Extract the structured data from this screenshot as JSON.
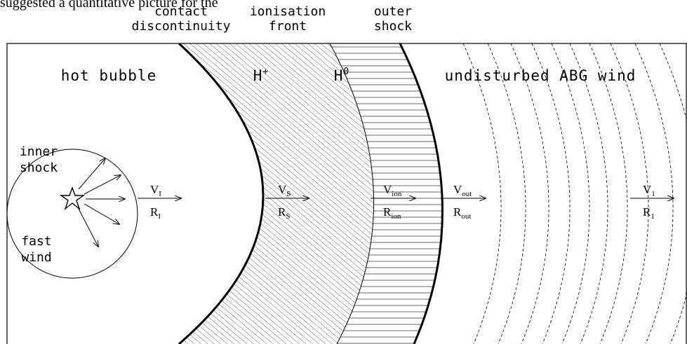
{
  "caption": "suggested a quantitative picture for the",
  "top_labels": [
    {
      "lines": [
        "contact",
        "discontinuity"
      ]
    },
    {
      "lines": [
        "ionisation",
        "front"
      ]
    },
    {
      "lines": [
        "outer",
        "shock"
      ]
    }
  ],
  "regions": [
    "hot bubble",
    "H",
    "H",
    "undisturbed ABG wind"
  ],
  "region_sups": [
    "+",
    "0"
  ],
  "inner": {
    "top": [
      "inner",
      "shock"
    ],
    "bottom": [
      "fast",
      "wind"
    ]
  },
  "vectors": [
    {
      "v": "V",
      "v_sub": "I",
      "r": "R",
      "r_sub": "I"
    },
    {
      "v": "V",
      "v_sub": "S",
      "r": "R",
      "r_sub": "S"
    },
    {
      "v": "V",
      "v_sub": "ion",
      "r": "R",
      "r_sub": "ion"
    },
    {
      "v": "V",
      "v_sub": "out",
      "r": "R",
      "r_sub": "out"
    },
    {
      "v": "V",
      "v_sub": "1",
      "r": "R",
      "r_sub": "1"
    }
  ]
}
